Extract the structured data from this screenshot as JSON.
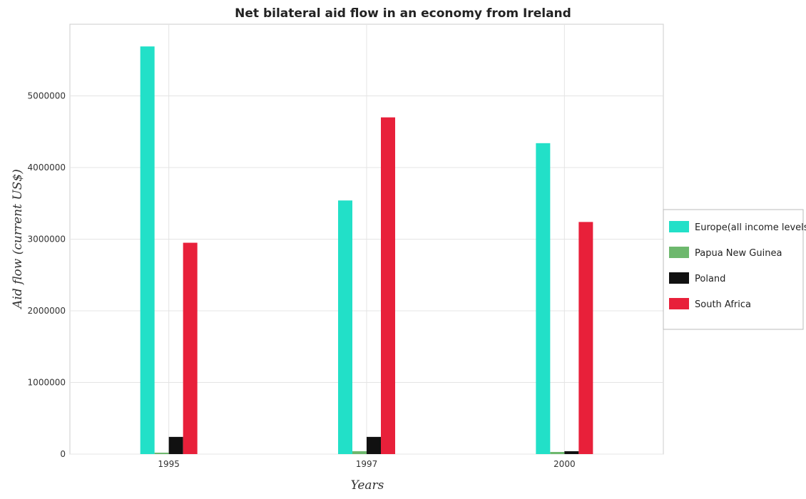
{
  "chart_data": {
    "type": "bar",
    "title": "Net bilateral aid flow in an economy from Ireland",
    "xlabel": "Years",
    "ylabel": "Aid flow (current US$)",
    "categories": [
      "1995",
      "1997",
      "2000"
    ],
    "ylim": [
      0,
      6000000
    ],
    "yticks": [
      0,
      1000000,
      2000000,
      3000000,
      4000000,
      5000000
    ],
    "ytick_labels": [
      "0",
      "1000000",
      "2000000",
      "3000000",
      "4000000",
      "5000000"
    ],
    "grid": true,
    "legend_position": "right",
    "series": [
      {
        "name": "Europe(all income levels)",
        "color": "#22e0c8",
        "values": [
          5690000,
          3540000,
          4340000
        ]
      },
      {
        "name": "Papua New Guinea",
        "color": "#6db86d",
        "values": [
          20000,
          40000,
          30000
        ]
      },
      {
        "name": "Poland",
        "color": "#111111",
        "values": [
          240000,
          240000,
          40000
        ]
      },
      {
        "name": "South Africa",
        "color": "#e8203a",
        "values": [
          2950000,
          4700000,
          3240000
        ]
      }
    ]
  }
}
